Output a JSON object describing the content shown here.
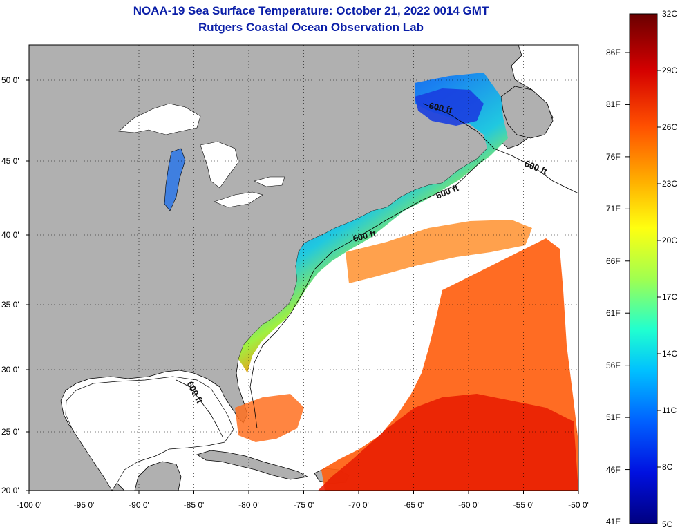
{
  "title": {
    "line1": "NOAA-19 Sea Surface Temperature:  October 21, 2022 0014 GMT",
    "line2": "Rutgers Coastal Ocean Observation Lab"
  },
  "map": {
    "lon_range": [
      -100,
      -50
    ],
    "lat_range": [
      20,
      52
    ],
    "lon_ticks": [
      "-100 0'",
      "-95 0'",
      "-90 0'",
      "-85 0'",
      "-80 0'",
      "-75 0'",
      "-70 0'",
      "-65 0'",
      "-60 0'",
      "-55 0'",
      "-50 0'"
    ],
    "lat_ticks": [
      "20 0'",
      "25 0'",
      "30 0'",
      "35 0'",
      "40 0'",
      "45 0'",
      "50 0'"
    ],
    "grid": "dotted",
    "isobath_label": "600 ft",
    "colors": {
      "land": "#b0b0b0",
      "no_data": "#ffffff",
      "coast": "#000000"
    }
  },
  "colorbar": {
    "celsius": [
      "32C",
      "29C",
      "26C",
      "23C",
      "20C",
      "17C",
      "14C",
      "11C",
      "8C",
      "5C"
    ],
    "fahrenheit": [
      "86F",
      "81F",
      "76F",
      "71F",
      "66F",
      "61F",
      "56F",
      "51F",
      "46F",
      "41F"
    ],
    "colors": [
      "#7a0000",
      "#d40000",
      "#ff6000",
      "#ffd000",
      "#c8ff30",
      "#40ffb0",
      "#00d0ff",
      "#0060ff",
      "#0010d0",
      "#000090"
    ]
  }
}
